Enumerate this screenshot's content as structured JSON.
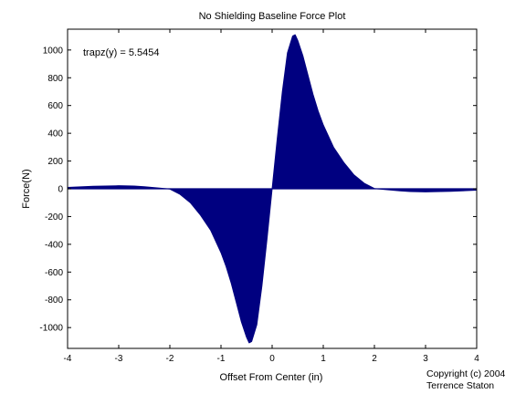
{
  "chart_data": {
    "type": "area",
    "title": "No Shielding Baseline Force Plot",
    "xlabel": "Offset From Center (in)",
    "ylabel": "Force(N)",
    "xlim": [
      -4,
      4
    ],
    "ylim": [
      -1150,
      1150
    ],
    "xticks": [
      -4,
      -3,
      -2,
      -1,
      0,
      1,
      2,
      3,
      4
    ],
    "yticks": [
      -1000,
      -800,
      -600,
      -400,
      -200,
      0,
      200,
      400,
      600,
      800,
      1000
    ],
    "grid": false,
    "fill_color": "#000080",
    "annotation": "trapz(y) =  5.5454",
    "series": [
      {
        "x": [
          -4.0,
          -3.5,
          -3.0,
          -2.7,
          -2.5,
          -2.3,
          -2.1,
          -2.0,
          -1.8,
          -1.6,
          -1.4,
          -1.2,
          -1.0,
          -0.9,
          -0.8,
          -0.7,
          -0.6,
          -0.5,
          -0.45,
          -0.4,
          -0.3,
          -0.2,
          -0.1,
          0.0,
          0.1,
          0.2,
          0.3,
          0.4,
          0.45,
          0.5,
          0.6,
          0.7,
          0.8,
          0.9,
          1.0,
          1.2,
          1.4,
          1.6,
          1.8,
          2.0,
          2.1,
          2.3,
          2.5,
          2.7,
          3.0,
          3.5,
          4.0
        ],
        "y": [
          10,
          18,
          22,
          20,
          15,
          8,
          2,
          -2,
          -40,
          -100,
          -190,
          -300,
          -460,
          -560,
          -680,
          -820,
          -960,
          -1070,
          -1110,
          -1100,
          -980,
          -700,
          -360,
          0,
          360,
          700,
          980,
          1100,
          1110,
          1070,
          960,
          820,
          680,
          560,
          460,
          300,
          190,
          100,
          40,
          2,
          -2,
          -8,
          -15,
          -20,
          -22,
          -18,
          -10
        ]
      }
    ],
    "footer": "Copyright (c) 2004",
    "footer_author": "Terrence Staton"
  }
}
